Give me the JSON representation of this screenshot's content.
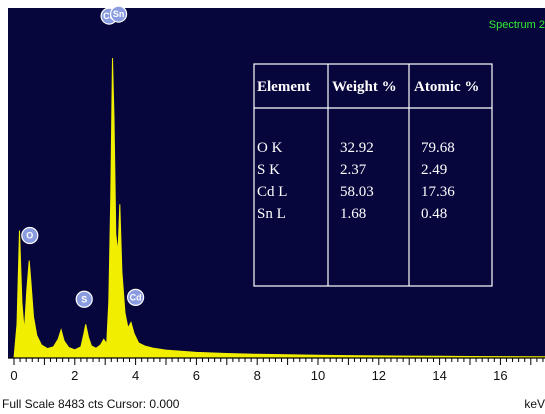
{
  "chart_data": {
    "type": "area",
    "title": "Spectrum 2",
    "xlabel": "keV",
    "xlim": [
      0,
      17.5
    ],
    "ylim": [
      0,
      8483
    ],
    "x_ticks": [
      "0",
      "2",
      "4",
      "6",
      "8",
      "10",
      "12",
      "14",
      "16"
    ],
    "footer": "Full Scale 8483 cts Cursor: 0.000",
    "colors": {
      "background": "#06063c",
      "spectrum": "#f2ee00",
      "frame": "#ffffff",
      "peak_marker": "#8a9be0"
    },
    "spectrum": [
      [
        0.0,
        0
      ],
      [
        0.1,
        900
      ],
      [
        0.18,
        3400
      ],
      [
        0.26,
        1500
      ],
      [
        0.34,
        700
      ],
      [
        0.42,
        1800
      ],
      [
        0.5,
        2600
      ],
      [
        0.56,
        2000
      ],
      [
        0.64,
        1100
      ],
      [
        0.75,
        600
      ],
      [
        0.9,
        350
      ],
      [
        1.1,
        250
      ],
      [
        1.3,
        300
      ],
      [
        1.45,
        500
      ],
      [
        1.55,
        750
      ],
      [
        1.65,
        450
      ],
      [
        1.8,
        280
      ],
      [
        2.0,
        220
      ],
      [
        2.2,
        300
      ],
      [
        2.3,
        650
      ],
      [
        2.36,
        900
      ],
      [
        2.45,
        550
      ],
      [
        2.55,
        320
      ],
      [
        2.7,
        260
      ],
      [
        2.85,
        350
      ],
      [
        2.95,
        500
      ],
      [
        3.05,
        380
      ],
      [
        3.12,
        1500
      ],
      [
        3.18,
        4200
      ],
      [
        3.24,
        8000
      ],
      [
        3.29,
        6400
      ],
      [
        3.35,
        3300
      ],
      [
        3.42,
        2800
      ],
      [
        3.48,
        4100
      ],
      [
        3.55,
        2300
      ],
      [
        3.65,
        1200
      ],
      [
        3.75,
        800
      ],
      [
        3.85,
        950
      ],
      [
        3.95,
        650
      ],
      [
        4.1,
        400
      ],
      [
        4.3,
        320
      ],
      [
        4.6,
        260
      ],
      [
        5.0,
        210
      ],
      [
        5.5,
        180
      ],
      [
        6.0,
        150
      ],
      [
        7.0,
        120
      ],
      [
        8.0,
        100
      ],
      [
        9.0,
        85
      ],
      [
        10.0,
        75
      ],
      [
        11.0,
        65
      ],
      [
        12.0,
        55
      ],
      [
        13.0,
        50
      ],
      [
        14.0,
        45
      ],
      [
        15.0,
        40
      ],
      [
        16.0,
        38
      ],
      [
        17.0,
        35
      ],
      [
        17.5,
        34
      ]
    ],
    "peaks": [
      {
        "label": "Cd",
        "x": 3.13,
        "y": 8000,
        "offset": 0
      },
      {
        "label": "Sn",
        "x": 3.44,
        "y": 8000,
        "offset": 1
      },
      {
        "label": "O",
        "x": 0.52,
        "y": 2600,
        "offset": 0
      },
      {
        "label": "S",
        "x": 2.31,
        "y": 900,
        "offset": 0
      },
      {
        "label": "Cd",
        "x": 4.0,
        "y": 950,
        "offset": 0
      }
    ],
    "table": {
      "headers": [
        "Element",
        "Weight %",
        "Atomic %"
      ],
      "rows": [
        [
          "O K",
          "32.92",
          "79.68"
        ],
        [
          "S K",
          "2.37",
          "2.49"
        ],
        [
          "Cd L",
          "58.03",
          "17.36"
        ],
        [
          "Sn L",
          "1.68",
          "0.48"
        ]
      ]
    }
  }
}
